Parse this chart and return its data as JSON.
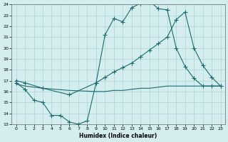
{
  "xlabel": "Humidex (Indice chaleur)",
  "bg_color": "#d4eef0",
  "grid_color": "#aed4d8",
  "line_color": "#1a6b6b",
  "xlim": [
    -0.5,
    23.5
  ],
  "ylim": [
    13,
    24
  ],
  "xticks": [
    0,
    1,
    2,
    3,
    4,
    5,
    6,
    7,
    8,
    9,
    10,
    11,
    12,
    13,
    14,
    15,
    16,
    17,
    18,
    19,
    20,
    21,
    22,
    23
  ],
  "yticks": [
    13,
    14,
    15,
    16,
    17,
    18,
    19,
    20,
    21,
    22,
    23,
    24
  ],
  "line1_x": [
    0,
    1,
    2,
    3,
    4,
    5,
    6,
    7,
    8,
    9,
    10,
    11,
    12,
    13,
    14,
    15,
    16,
    17,
    18,
    19,
    20,
    21,
    22,
    23
  ],
  "line1_y": [
    16.8,
    16.2,
    15.2,
    15.0,
    13.8,
    13.8,
    13.2,
    13.0,
    13.3,
    16.8,
    21.2,
    22.7,
    22.4,
    23.7,
    24.1,
    24.3,
    23.6,
    23.5,
    20.0,
    18.3,
    17.2,
    16.5,
    16.5,
    16.5
  ],
  "line2_x": [
    0,
    1,
    3,
    6,
    9,
    10,
    11,
    12,
    13,
    14,
    15,
    16,
    17,
    18,
    19,
    20,
    21,
    22,
    23
  ],
  "line2_y": [
    17.0,
    16.8,
    16.3,
    15.7,
    16.8,
    17.3,
    17.8,
    18.2,
    18.6,
    19.2,
    19.8,
    20.4,
    21.0,
    22.6,
    23.3,
    20.0,
    18.4,
    17.3,
    16.5
  ],
  "line3_x": [
    0,
    1,
    3,
    6,
    9,
    10,
    11,
    12,
    13,
    14,
    15,
    16,
    17,
    18,
    19,
    20,
    21,
    22,
    23
  ],
  "line3_y": [
    16.7,
    16.5,
    16.3,
    16.1,
    16.0,
    16.0,
    16.1,
    16.1,
    16.2,
    16.3,
    16.3,
    16.4,
    16.5,
    16.5,
    16.5,
    16.5,
    16.5,
    16.5,
    16.5
  ]
}
